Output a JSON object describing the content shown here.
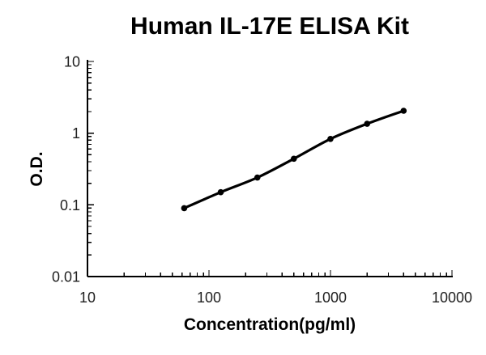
{
  "title": "Human IL-17E ELISA Kit",
  "chart_data": {
    "type": "line",
    "title": "Human IL-17E ELISA Kit",
    "xlabel": "Concentration(pg/ml)",
    "ylabel": "O.D.",
    "x_scale": "log",
    "y_scale": "log",
    "xlim": [
      10,
      10000
    ],
    "ylim": [
      0.01,
      10
    ],
    "x_ticks": [
      "10",
      "100",
      "1000",
      "10000"
    ],
    "y_ticks": [
      "0.01",
      "0.1",
      "1",
      "10"
    ],
    "grid": false,
    "legend": false,
    "marker": "circle",
    "x": [
      62.5,
      125,
      250,
      500,
      1000,
      2000,
      4000
    ],
    "y": [
      0.09,
      0.15,
      0.24,
      0.44,
      0.83,
      1.35,
      2.05
    ]
  },
  "colors": {
    "curve": "#000000",
    "axis": "#000000",
    "text": "#000000",
    "background": "#ffffff"
  }
}
